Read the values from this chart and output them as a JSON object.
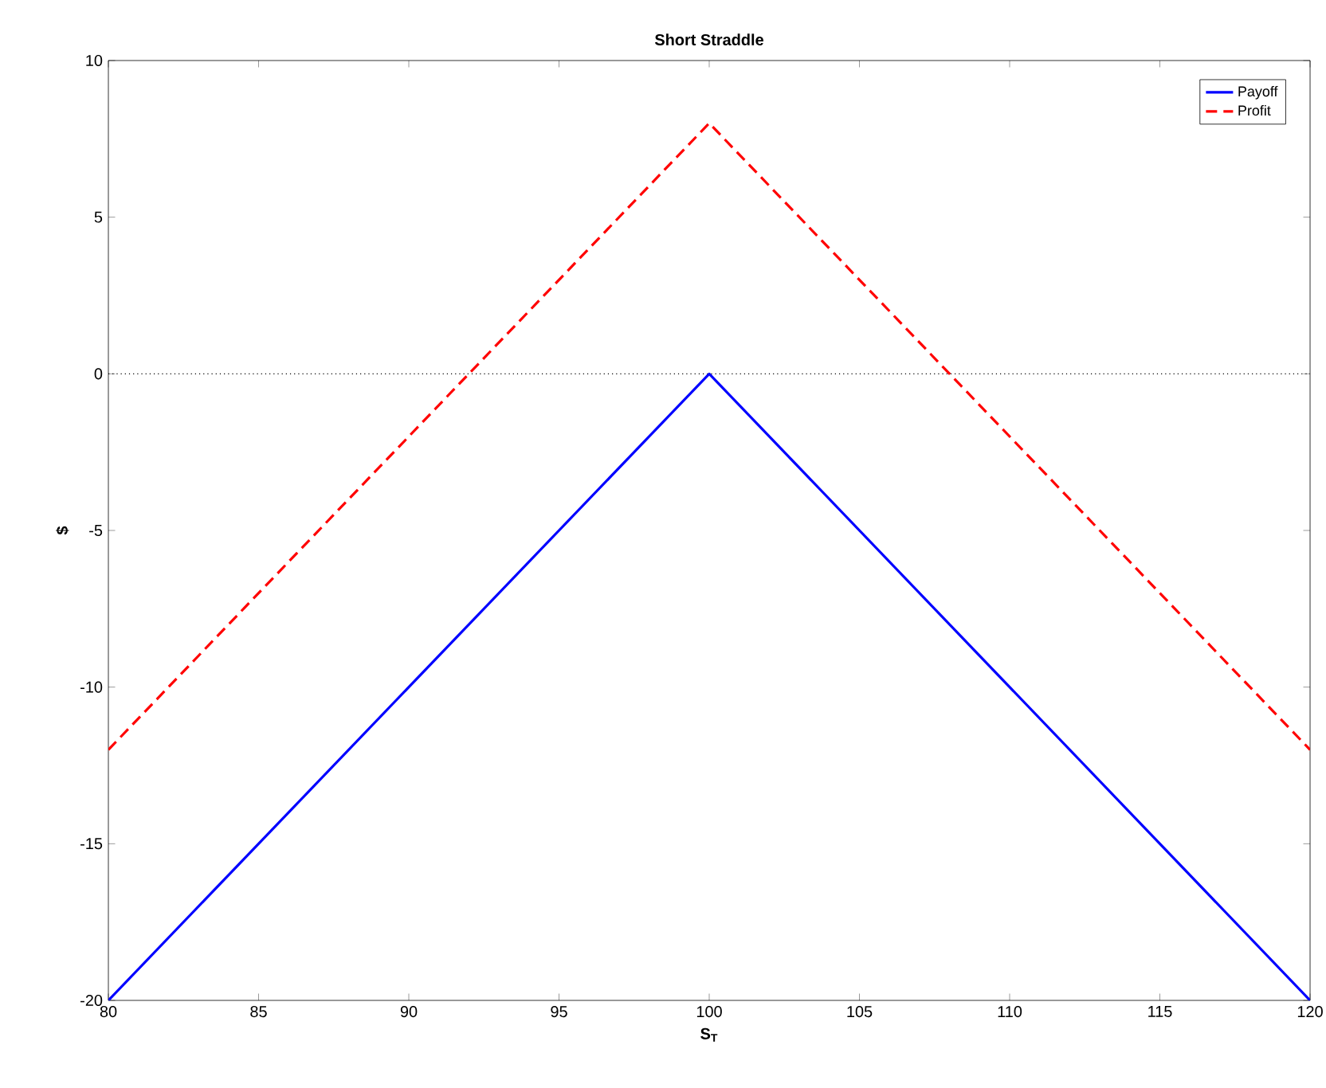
{
  "chart_data": {
    "type": "line",
    "title": "Short Straddle",
    "xlabel": "S$_{T}$",
    "ylabel": "$",
    "x": [
      80,
      100,
      120
    ],
    "series": [
      {
        "name": "Payoff",
        "color": "#0000ff",
        "values": [
          -20,
          0,
          -20
        ],
        "line_style": "solid"
      },
      {
        "name": "Profit",
        "color": "#ff0000",
        "values": [
          -12,
          8,
          -12
        ],
        "line_style": "dashed"
      }
    ],
    "xlim": [
      80,
      120
    ],
    "xticks": [
      80,
      85,
      90,
      95,
      100,
      105,
      110,
      115,
      120
    ],
    "ylim": [
      -20,
      10
    ],
    "yticks": [
      -20,
      -15,
      -10,
      -5,
      0,
      5,
      10
    ],
    "ref_lines": [
      {
        "axis": "y",
        "value": 0,
        "color": "#000000",
        "line_style": "dotted"
      }
    ],
    "grid": false,
    "legend": "top right",
    "marker": "none"
  }
}
